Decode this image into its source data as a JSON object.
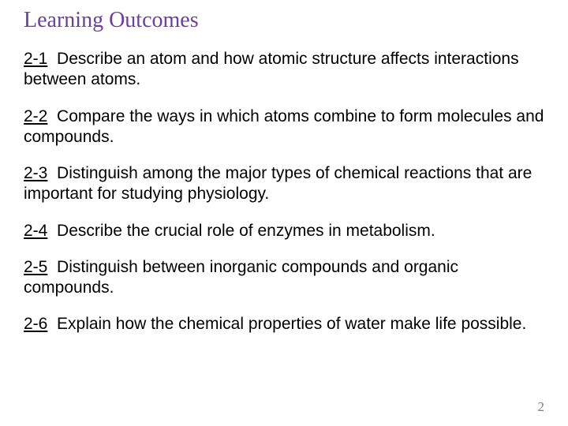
{
  "title": "Learning Outcomes",
  "title_color": "#6a3fa0",
  "title_fontsize": 28,
  "body_fontsize": 21,
  "body_color": "#000000",
  "background_color": "#ffffff",
  "page_number": "2",
  "page_number_color": "#808080",
  "outcomes": [
    {
      "num": "2-1",
      "text": "Describe an atom and how atomic structure affects interactions between atoms."
    },
    {
      "num": "2-2",
      "text": "Compare the ways in which atoms combine to form molecules and compounds."
    },
    {
      "num": "2-3",
      "text": "Distinguish among the major types of chemical reactions that are important for  studying physiology."
    },
    {
      "num": "2-4",
      "text": "Describe the crucial role of enzymes in metabolism."
    },
    {
      "num": "2-5",
      "text": "Distinguish between inorganic compounds and organic compounds."
    },
    {
      "num": "2-6",
      "text": "Explain how the chemical properties of water make life possible."
    }
  ]
}
